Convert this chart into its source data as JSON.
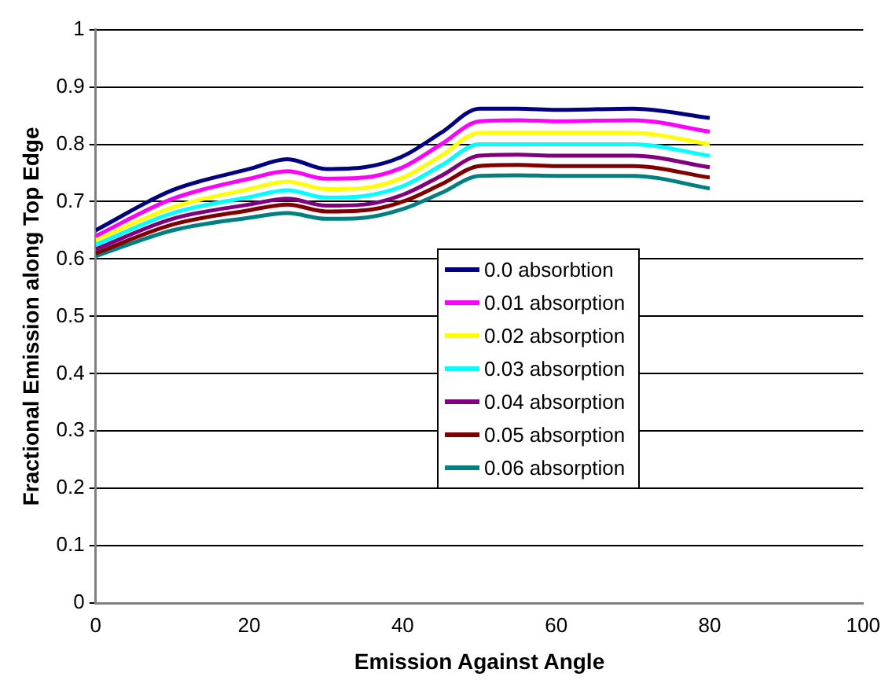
{
  "chart_data": {
    "type": "line",
    "xlabel": "Emission Against Angle",
    "ylabel": "Fractional Emission along Top Edge",
    "x": [
      0,
      10,
      20,
      25,
      30,
      35,
      40,
      45,
      50,
      55,
      60,
      70,
      80
    ],
    "series": [
      {
        "name": "0.0 absorbtion",
        "color": "#000080",
        "values": [
          0.65,
          0.72,
          0.757,
          0.774,
          0.757,
          0.76,
          0.779,
          0.82,
          0.862,
          0.862,
          0.86,
          0.862,
          0.846
        ]
      },
      {
        "name": "0.01 absorption",
        "color": "#ff00ff",
        "values": [
          0.64,
          0.705,
          0.74,
          0.753,
          0.74,
          0.742,
          0.76,
          0.8,
          0.84,
          0.842,
          0.84,
          0.842,
          0.822
        ]
      },
      {
        "name": "0.02 absorption",
        "color": "#ffff00",
        "values": [
          0.633,
          0.69,
          0.722,
          0.735,
          0.722,
          0.724,
          0.742,
          0.78,
          0.82,
          0.82,
          0.82,
          0.82,
          0.8
        ]
      },
      {
        "name": "0.03 absorption",
        "color": "#00ffff",
        "values": [
          0.625,
          0.68,
          0.708,
          0.72,
          0.707,
          0.71,
          0.727,
          0.763,
          0.8,
          0.8,
          0.8,
          0.8,
          0.78
        ]
      },
      {
        "name": "0.04 absorption",
        "color": "#800080",
        "values": [
          0.617,
          0.67,
          0.695,
          0.705,
          0.693,
          0.695,
          0.712,
          0.745,
          0.78,
          0.782,
          0.78,
          0.78,
          0.76
        ]
      },
      {
        "name": "0.05 absorption",
        "color": "#800000",
        "values": [
          0.61,
          0.66,
          0.685,
          0.695,
          0.683,
          0.685,
          0.7,
          0.73,
          0.762,
          0.764,
          0.762,
          0.762,
          0.742
        ]
      },
      {
        "name": "0.06 absorption",
        "color": "#008080",
        "values": [
          0.605,
          0.65,
          0.672,
          0.68,
          0.67,
          0.672,
          0.687,
          0.715,
          0.745,
          0.746,
          0.745,
          0.745,
          0.723
        ]
      }
    ],
    "xlim": [
      0,
      100
    ],
    "xticks": [
      0,
      20,
      40,
      60,
      80,
      100
    ],
    "ylim": [
      0,
      1
    ],
    "yticks": [
      0,
      0.1,
      0.2,
      0.3,
      0.4,
      0.5,
      0.6,
      0.7,
      0.8,
      0.9,
      1
    ],
    "grid": "y",
    "legend": "center",
    "marker": "none",
    "line_style": "solid"
  }
}
